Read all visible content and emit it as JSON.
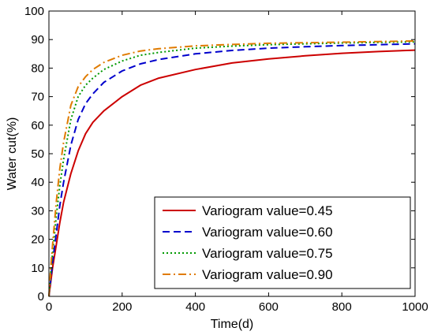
{
  "chart_data": {
    "type": "line",
    "xlabel": "Time(d)",
    "ylabel": "Water cut(%)",
    "xlim": [
      0,
      1000
    ],
    "ylim": [
      0,
      100
    ],
    "xticks": [
      0,
      200,
      400,
      600,
      800,
      1000
    ],
    "yticks": [
      0,
      10,
      20,
      30,
      40,
      50,
      60,
      70,
      80,
      90,
      100
    ],
    "grid": false,
    "legend_position": "bottom-right",
    "series": [
      {
        "name": "Variogram value=0.45",
        "color": "#cc0000",
        "style": "solid",
        "x": [
          0,
          5,
          10,
          20,
          30,
          40,
          60,
          80,
          100,
          120,
          150,
          200,
          250,
          300,
          400,
          500,
          600,
          700,
          800,
          900,
          1000
        ],
        "y": [
          0,
          5,
          10,
          18,
          26,
          33,
          43,
          51,
          57,
          61,
          65,
          70,
          74,
          76.5,
          79.5,
          81.8,
          83.2,
          84.3,
          85.2,
          85.8,
          86.3
        ]
      },
      {
        "name": "Variogram value=0.60",
        "color": "#0000cc",
        "style": "dashed",
        "x": [
          0,
          5,
          10,
          20,
          30,
          40,
          60,
          80,
          100,
          120,
          150,
          200,
          250,
          300,
          400,
          500,
          600,
          700,
          800,
          900,
          1000
        ],
        "y": [
          0,
          6,
          12,
          22,
          32,
          40,
          53,
          62,
          67.5,
          71,
          75,
          79,
          81.5,
          83,
          85,
          86.2,
          87,
          87.5,
          87.9,
          88.2,
          88.5
        ]
      },
      {
        "name": "Variogram value=0.75",
        "color": "#009900",
        "style": "dotted",
        "x": [
          0,
          5,
          10,
          20,
          30,
          40,
          60,
          80,
          100,
          120,
          150,
          200,
          250,
          300,
          400,
          500,
          600,
          700,
          800,
          900,
          1000
        ],
        "y": [
          0,
          8,
          15,
          28,
          39,
          48,
          62,
          70,
          74,
          76.5,
          79.5,
          82.5,
          84.5,
          85.5,
          87,
          87.7,
          88.2,
          88.5,
          88.8,
          89,
          89.2
        ]
      },
      {
        "name": "Variogram value=0.90",
        "color": "#e07b00",
        "style": "dashdot",
        "x": [
          0,
          5,
          10,
          20,
          30,
          40,
          60,
          80,
          100,
          120,
          150,
          200,
          250,
          300,
          400,
          500,
          600,
          700,
          800,
          900,
          1000
        ],
        "y": [
          0,
          10,
          18,
          33,
          45,
          54,
          67,
          73.5,
          77,
          79.5,
          82,
          84.5,
          86,
          86.8,
          87.8,
          88.3,
          88.7,
          88.9,
          89.1,
          89.3,
          89.5
        ]
      }
    ]
  }
}
